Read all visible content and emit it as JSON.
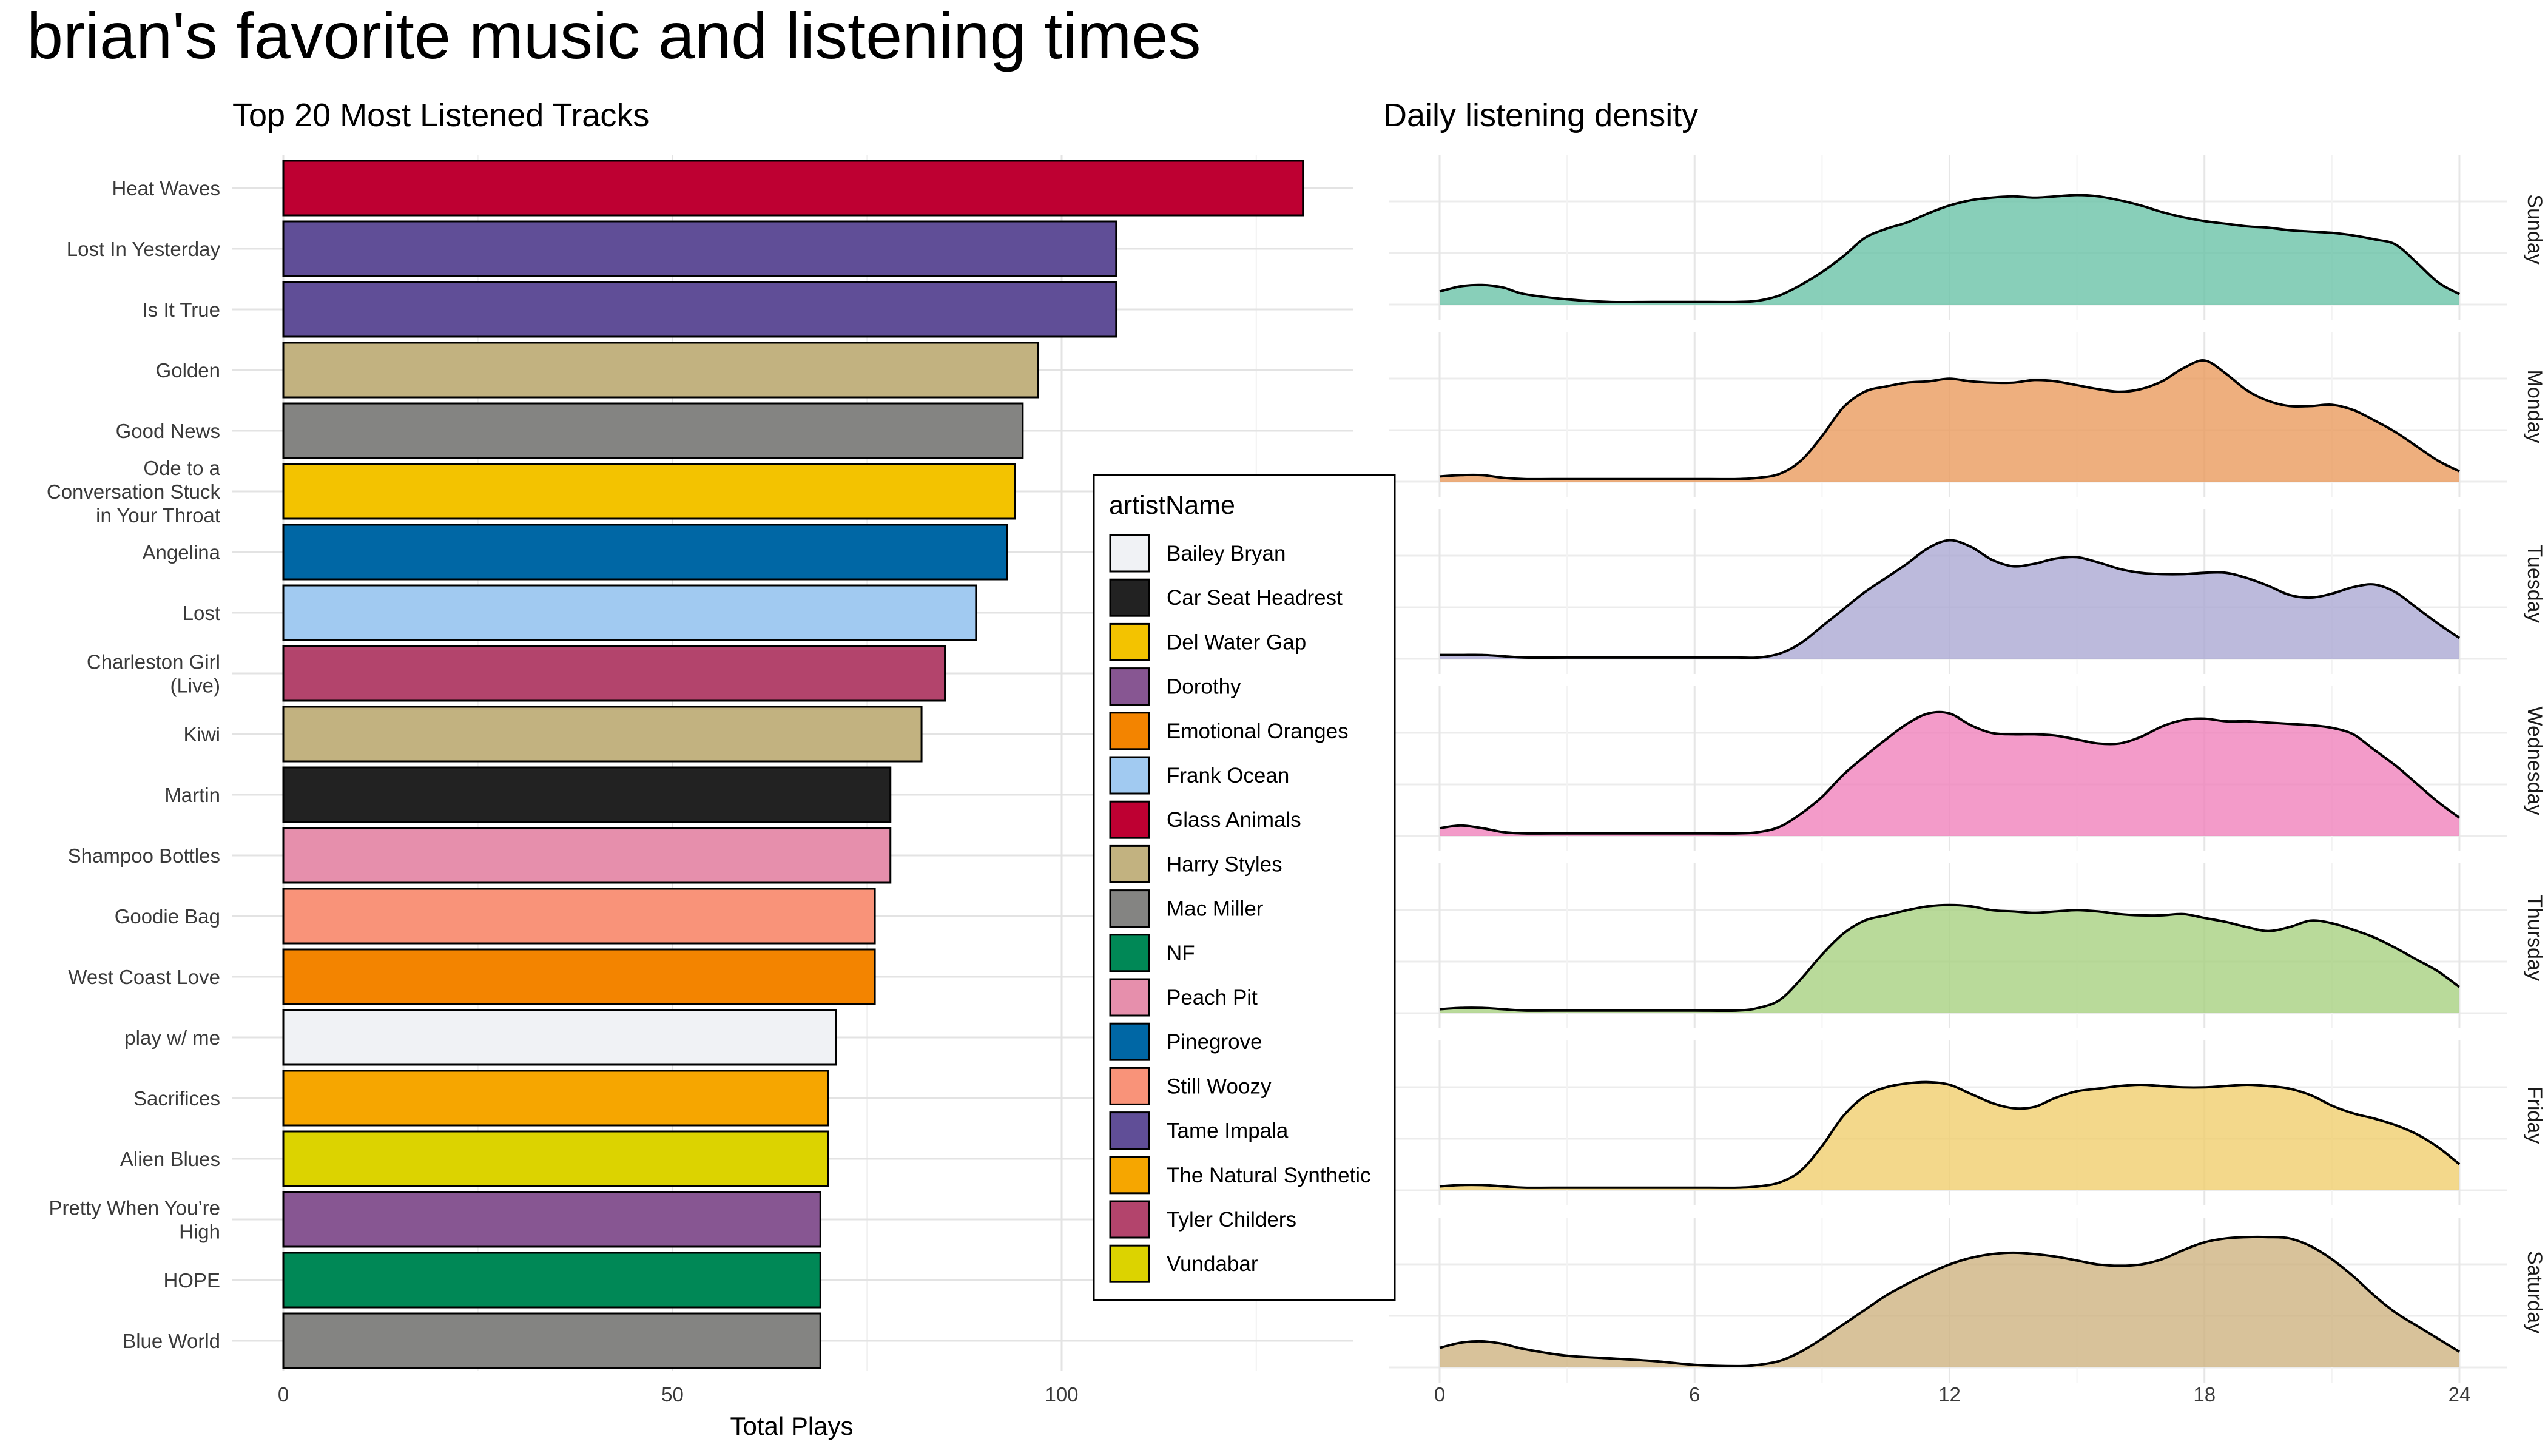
{
  "page_title": "brian's favorite music and listening times",
  "chart_data": [
    {
      "type": "bar",
      "orientation": "horizontal",
      "title": "Top 20 Most Listened Tracks",
      "xlabel": "Total Plays",
      "ylabel": "",
      "xlim": [
        0,
        137
      ],
      "xticks": [
        "0",
        "50",
        "100"
      ],
      "grid": true,
      "legend_title": "artistName",
      "legend_position": "inside-right",
      "categories": [
        "Heat Waves",
        "Lost In Yesterday",
        "Is It True",
        "Golden",
        "Good News",
        "Ode to a Conversation Stuck in Your Throat",
        "Angelina",
        "Lost",
        "Charleston Girl (Live)",
        "Kiwi",
        "Martin",
        "Shampoo Bottles",
        "Goodie Bag",
        "West Coast Love",
        "play w/ me",
        "Sacrifices",
        "Alien Blues",
        "Pretty When You’re High",
        "HOPE",
        "Blue World"
      ],
      "category_lines": [
        [
          "Heat Waves"
        ],
        [
          "Lost In Yesterday"
        ],
        [
          "Is It True"
        ],
        [
          "Golden"
        ],
        [
          "Good News"
        ],
        [
          "Ode to a",
          "Conversation Stuck",
          "in Your Throat"
        ],
        [
          "Angelina"
        ],
        [
          "Lost"
        ],
        [
          "Charleston Girl",
          "(Live)"
        ],
        [
          "Kiwi"
        ],
        [
          "Martin"
        ],
        [
          "Shampoo Bottles"
        ],
        [
          "Goodie Bag"
        ],
        [
          "West Coast Love"
        ],
        [
          "play w/ me"
        ],
        [
          "Sacrifices"
        ],
        [
          "Alien Blues"
        ],
        [
          "Pretty When You’re",
          "High"
        ],
        [
          "HOPE"
        ],
        [
          "Blue World"
        ]
      ],
      "values": [
        131,
        107,
        107,
        97,
        95,
        94,
        93,
        89,
        85,
        82,
        78,
        78,
        76,
        76,
        71,
        70,
        70,
        69,
        69,
        69
      ],
      "artists": [
        "Glass Animals",
        "Tame Impala",
        "Tame Impala",
        "Harry Styles",
        "Mac Miller",
        "Del Water Gap",
        "Pinegrove",
        "Frank Ocean",
        "Tyler Childers",
        "Harry Styles",
        "Car Seat Headrest",
        "Peach Pit",
        "Still Woozy",
        "Emotional Oranges",
        "Bailey Bryan",
        "The Natural Synthetic",
        "Vundabar",
        "Dorothy",
        "NF",
        "Mac Miller"
      ],
      "legend": [
        {
          "name": "Bailey Bryan",
          "color": "#f0f2f5"
        },
        {
          "name": "Car Seat Headrest",
          "color": "#222222"
        },
        {
          "name": "Del Water Gap",
          "color": "#f3c300"
        },
        {
          "name": "Dorothy",
          "color": "#875692"
        },
        {
          "name": "Emotional Oranges",
          "color": "#f38400"
        },
        {
          "name": "Frank Ocean",
          "color": "#a1caf1"
        },
        {
          "name": "Glass Animals",
          "color": "#be0032"
        },
        {
          "name": "Harry Styles",
          "color": "#c2b280"
        },
        {
          "name": "Mac Miller",
          "color": "#848482"
        },
        {
          "name": "NF",
          "color": "#008856"
        },
        {
          "name": "Peach Pit",
          "color": "#e68fac"
        },
        {
          "name": "Pinegrove",
          "color": "#0067a5"
        },
        {
          "name": "Still Woozy",
          "color": "#f99379"
        },
        {
          "name": "Tame Impala",
          "color": "#604e97"
        },
        {
          "name": "The Natural Synthetic",
          "color": "#f6a600"
        },
        {
          "name": "Tyler Childers",
          "color": "#b3446c"
        },
        {
          "name": "Vundabar",
          "color": "#dcd300"
        }
      ]
    },
    {
      "type": "area",
      "title": "Daily listening density",
      "xlabel": "",
      "ylabel": "",
      "xlim": [
        0,
        24
      ],
      "xticks": [
        "0",
        "6",
        "12",
        "18",
        "24"
      ],
      "grid": true,
      "x": [
        0,
        0.5,
        1,
        1.5,
        2,
        3,
        4,
        5,
        6,
        7,
        7.5,
        8,
        8.5,
        9,
        9.5,
        10,
        10.5,
        11,
        11.5,
        12,
        12.5,
        13,
        13.5,
        14,
        14.5,
        15,
        15.5,
        16,
        16.5,
        17,
        17.5,
        18,
        18.5,
        19,
        19.5,
        20,
        20.5,
        21,
        21.5,
        22,
        22.5,
        23,
        23.5,
        24
      ],
      "series": [
        {
          "name": "Sunday",
          "color": "#66c2a5",
          "values": [
            0.1,
            0.14,
            0.15,
            0.13,
            0.08,
            0.04,
            0.02,
            0.02,
            0.02,
            0.02,
            0.03,
            0.07,
            0.15,
            0.25,
            0.37,
            0.51,
            0.58,
            0.63,
            0.7,
            0.76,
            0.8,
            0.82,
            0.83,
            0.82,
            0.83,
            0.84,
            0.83,
            0.8,
            0.76,
            0.71,
            0.67,
            0.64,
            0.62,
            0.6,
            0.59,
            0.57,
            0.56,
            0.55,
            0.53,
            0.5,
            0.46,
            0.32,
            0.17,
            0.08
          ]
        },
        {
          "name": "Monday",
          "color": "#e9995a",
          "values": [
            0.04,
            0.05,
            0.05,
            0.03,
            0.02,
            0.02,
            0.02,
            0.02,
            0.02,
            0.02,
            0.03,
            0.06,
            0.16,
            0.35,
            0.57,
            0.69,
            0.73,
            0.76,
            0.77,
            0.79,
            0.77,
            0.76,
            0.76,
            0.78,
            0.77,
            0.74,
            0.71,
            0.69,
            0.71,
            0.77,
            0.87,
            0.93,
            0.83,
            0.7,
            0.62,
            0.58,
            0.58,
            0.59,
            0.55,
            0.47,
            0.38,
            0.27,
            0.16,
            0.08
          ]
        },
        {
          "name": "Tuesday",
          "color": "#a9a6d2",
          "values": [
            0.03,
            0.03,
            0.03,
            0.02,
            0.01,
            0.01,
            0.01,
            0.01,
            0.01,
            0.01,
            0.01,
            0.04,
            0.12,
            0.25,
            0.38,
            0.51,
            0.62,
            0.73,
            0.85,
            0.91,
            0.86,
            0.76,
            0.71,
            0.73,
            0.77,
            0.78,
            0.74,
            0.69,
            0.66,
            0.65,
            0.65,
            0.66,
            0.66,
            0.62,
            0.56,
            0.49,
            0.47,
            0.5,
            0.55,
            0.57,
            0.51,
            0.39,
            0.27,
            0.16
          ]
        },
        {
          "name": "Wednesday",
          "color": "#ef7fba",
          "values": [
            0.06,
            0.08,
            0.06,
            0.03,
            0.02,
            0.02,
            0.02,
            0.02,
            0.02,
            0.02,
            0.03,
            0.07,
            0.17,
            0.3,
            0.47,
            0.61,
            0.74,
            0.86,
            0.94,
            0.94,
            0.85,
            0.79,
            0.78,
            0.78,
            0.77,
            0.74,
            0.71,
            0.71,
            0.76,
            0.84,
            0.89,
            0.9,
            0.88,
            0.88,
            0.87,
            0.86,
            0.85,
            0.83,
            0.78,
            0.66,
            0.54,
            0.4,
            0.26,
            0.14
          ]
        },
        {
          "name": "Thursday",
          "color": "#a5cf7e",
          "values": [
            0.03,
            0.04,
            0.04,
            0.03,
            0.02,
            0.02,
            0.02,
            0.02,
            0.02,
            0.02,
            0.04,
            0.1,
            0.26,
            0.45,
            0.61,
            0.71,
            0.75,
            0.79,
            0.82,
            0.83,
            0.82,
            0.79,
            0.78,
            0.77,
            0.78,
            0.79,
            0.78,
            0.76,
            0.75,
            0.75,
            0.76,
            0.73,
            0.7,
            0.66,
            0.63,
            0.66,
            0.71,
            0.69,
            0.64,
            0.58,
            0.5,
            0.41,
            0.32,
            0.2
          ]
        },
        {
          "name": "Friday",
          "color": "#efcd6a",
          "values": [
            0.03,
            0.04,
            0.04,
            0.03,
            0.02,
            0.02,
            0.02,
            0.02,
            0.02,
            0.02,
            0.03,
            0.06,
            0.15,
            0.34,
            0.57,
            0.72,
            0.79,
            0.82,
            0.83,
            0.81,
            0.74,
            0.67,
            0.63,
            0.64,
            0.71,
            0.76,
            0.78,
            0.8,
            0.81,
            0.8,
            0.79,
            0.79,
            0.8,
            0.81,
            0.8,
            0.78,
            0.73,
            0.65,
            0.59,
            0.55,
            0.5,
            0.43,
            0.33,
            0.2
          ]
        },
        {
          "name": "Saturday",
          "color": "#cdb17e",
          "values": [
            0.15,
            0.19,
            0.2,
            0.18,
            0.14,
            0.09,
            0.07,
            0.05,
            0.02,
            0.01,
            0.02,
            0.05,
            0.12,
            0.22,
            0.33,
            0.44,
            0.55,
            0.64,
            0.72,
            0.79,
            0.84,
            0.87,
            0.88,
            0.87,
            0.85,
            0.82,
            0.79,
            0.78,
            0.79,
            0.83,
            0.9,
            0.96,
            0.99,
            1.0,
            1.0,
            0.99,
            0.93,
            0.83,
            0.7,
            0.55,
            0.42,
            0.32,
            0.22,
            0.12
          ]
        }
      ]
    }
  ]
}
